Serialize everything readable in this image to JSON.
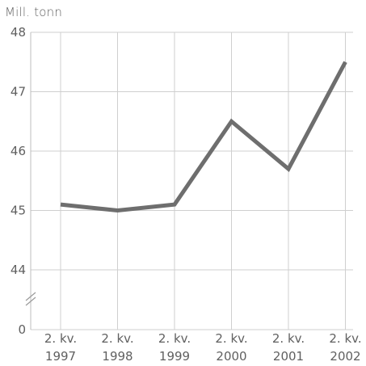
{
  "chart_data": {
    "type": "line",
    "ylabel": "Mill. tonn",
    "x_tick_labels": [
      [
        "2. kv.",
        "1997"
      ],
      [
        "2. kv.",
        "1998"
      ],
      [
        "2. kv.",
        "1999"
      ],
      [
        "2. kv.",
        "2000"
      ],
      [
        "2. kv.",
        "2001"
      ],
      [
        "2. kv.",
        "2002"
      ]
    ],
    "y_ticks": [
      "48",
      "47",
      "46",
      "45",
      "44",
      "0"
    ],
    "axis_break": true,
    "series": [
      {
        "values": [
          45.1,
          45.0,
          45.1,
          46.5,
          45.7,
          47.5
        ]
      }
    ],
    "ylim": [
      44,
      48
    ],
    "grid": true,
    "colors": {
      "line": "#6e6e6e",
      "grid": "#cfcfcf"
    }
  }
}
